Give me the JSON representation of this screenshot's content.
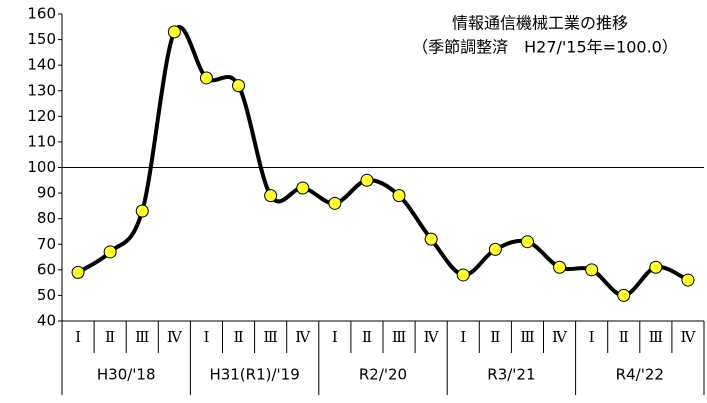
{
  "chart_data": {
    "type": "line",
    "title": "情報通信機械工業の推移",
    "subtitle": "（季節調整済　H27/'15年=100.0）",
    "categories": [
      "I",
      "Ⅱ",
      "Ⅲ",
      "Ⅳ",
      "I",
      "Ⅱ",
      "Ⅲ",
      "Ⅳ",
      "I",
      "Ⅱ",
      "Ⅲ",
      "Ⅳ",
      "I",
      "Ⅱ",
      "Ⅲ",
      "Ⅳ",
      "I",
      "Ⅱ",
      "Ⅲ",
      "Ⅳ"
    ],
    "groups": [
      "H30/'18",
      "H31(R1)/'19",
      "R2/'20",
      "R3/'21",
      "R4/'22"
    ],
    "values": [
      59,
      67,
      83,
      153,
      135,
      132,
      89,
      92,
      86,
      95,
      89,
      72,
      58,
      68,
      71,
      61,
      60,
      50,
      61,
      56
    ],
    "color": "#000000",
    "marker_color": "#ffff33",
    "reference_line": 100,
    "ylim": [
      40,
      160
    ],
    "yticks": [
      40,
      50,
      60,
      70,
      80,
      90,
      100,
      110,
      120,
      130,
      140,
      150,
      160
    ]
  }
}
